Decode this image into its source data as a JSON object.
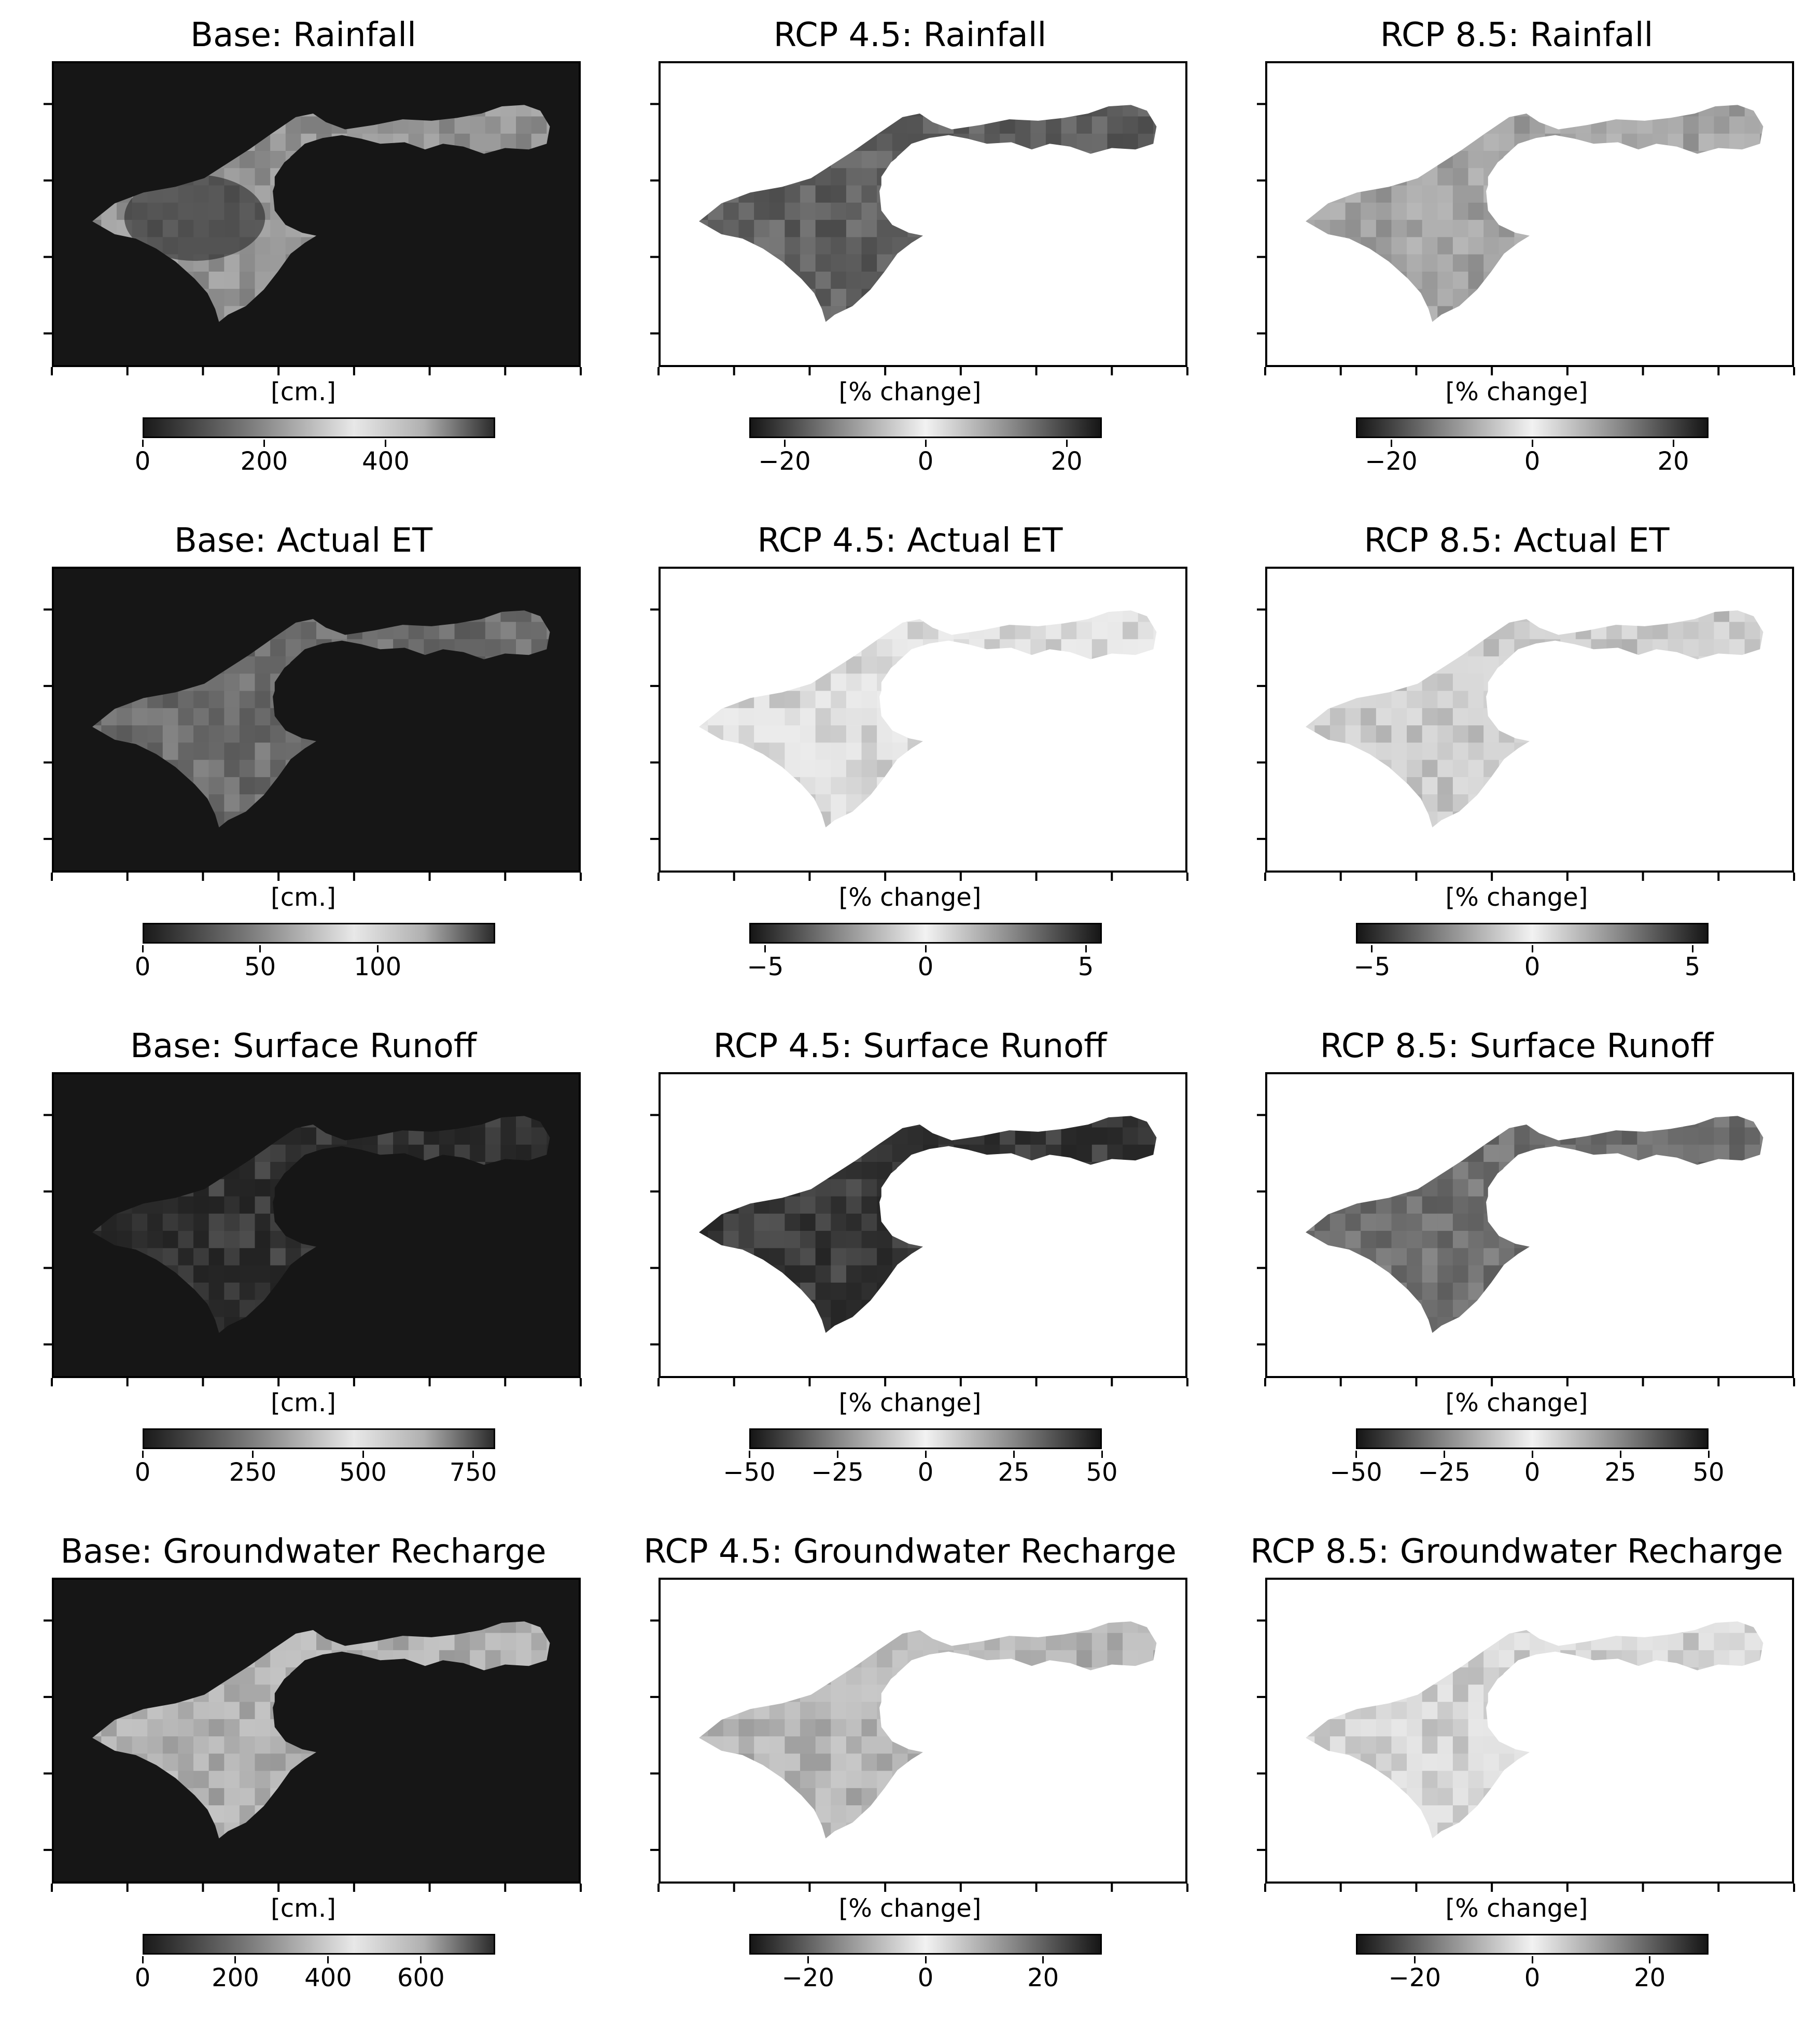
{
  "panels": [
    {
      "title": "Base: Rainfall",
      "unit": "[cm.]",
      "cmap": "seq",
      "cmin": 0,
      "cmax": 580,
      "ticks": [
        {
          "v": 0,
          "label": "0"
        },
        {
          "v": 200,
          "label": "200"
        },
        {
          "v": 400,
          "label": "400"
        }
      ]
    },
    {
      "title": "RCP 4.5: Rainfall",
      "unit": "[% change]",
      "cmap": "div",
      "cmin": -25,
      "cmax": 25,
      "ticks": [
        {
          "v": -20,
          "label": "−20"
        },
        {
          "v": 0,
          "label": "0"
        },
        {
          "v": 20,
          "label": "20"
        }
      ]
    },
    {
      "title": "RCP 8.5: Rainfall",
      "unit": "[% change]",
      "cmap": "div",
      "cmin": -25,
      "cmax": 25,
      "ticks": [
        {
          "v": -20,
          "label": "−20"
        },
        {
          "v": 0,
          "label": "0"
        },
        {
          "v": 20,
          "label": "20"
        }
      ]
    },
    {
      "title": "Base: Actual ET",
      "unit": "[cm.]",
      "cmap": "seq",
      "cmin": 0,
      "cmax": 150,
      "ticks": [
        {
          "v": 0,
          "label": "0"
        },
        {
          "v": 50,
          "label": "50"
        },
        {
          "v": 100,
          "label": "100"
        }
      ]
    },
    {
      "title": "RCP 4.5: Actual ET",
      "unit": "[% change]",
      "cmap": "div",
      "cmin": -5.5,
      "cmax": 5.5,
      "ticks": [
        {
          "v": -5,
          "label": "−5"
        },
        {
          "v": 0,
          "label": "0"
        },
        {
          "v": 5,
          "label": "5"
        }
      ]
    },
    {
      "title": "RCP 8.5: Actual ET",
      "unit": "[% change]",
      "cmap": "div",
      "cmin": -5.5,
      "cmax": 5.5,
      "ticks": [
        {
          "v": -5,
          "label": "−5"
        },
        {
          "v": 0,
          "label": "0"
        },
        {
          "v": 5,
          "label": "5"
        }
      ]
    },
    {
      "title": "Base: Surface Runoff",
      "unit": "[cm.]",
      "cmap": "seq",
      "cmin": 0,
      "cmax": 800,
      "ticks": [
        {
          "v": 0,
          "label": "0"
        },
        {
          "v": 250,
          "label": "250"
        },
        {
          "v": 500,
          "label": "500"
        },
        {
          "v": 750,
          "label": "750"
        }
      ]
    },
    {
      "title": "RCP 4.5: Surface Runoff",
      "unit": "[% change]",
      "cmap": "div",
      "cmin": -50,
      "cmax": 50,
      "ticks": [
        {
          "v": -50,
          "label": "−50"
        },
        {
          "v": -25,
          "label": "−25"
        },
        {
          "v": 0,
          "label": "0"
        },
        {
          "v": 25,
          "label": "25"
        },
        {
          "v": 50,
          "label": "50"
        }
      ]
    },
    {
      "title": "RCP 8.5: Surface Runoff",
      "unit": "[% change]",
      "cmap": "div",
      "cmin": -50,
      "cmax": 50,
      "ticks": [
        {
          "v": -50,
          "label": "−50"
        },
        {
          "v": -25,
          "label": "−25"
        },
        {
          "v": 0,
          "label": "0"
        },
        {
          "v": 25,
          "label": "25"
        },
        {
          "v": 50,
          "label": "50"
        }
      ]
    },
    {
      "title": "Base: Groundwater Recharge",
      "unit": "[cm.]",
      "cmap": "seq",
      "cmin": 0,
      "cmax": 760,
      "ticks": [
        {
          "v": 0,
          "label": "0"
        },
        {
          "v": 200,
          "label": "200"
        },
        {
          "v": 400,
          "label": "400"
        },
        {
          "v": 600,
          "label": "600"
        }
      ]
    },
    {
      "title": "RCP 4.5: Groundwater Recharge",
      "unit": "[% change]",
      "cmap": "div",
      "cmin": -30,
      "cmax": 30,
      "ticks": [
        {
          "v": -20,
          "label": "−20"
        },
        {
          "v": 0,
          "label": "0"
        },
        {
          "v": 20,
          "label": "20"
        }
      ]
    },
    {
      "title": "RCP 8.5: Groundwater Recharge",
      "unit": "[% change]",
      "cmap": "div",
      "cmin": -30,
      "cmax": 30,
      "ticks": [
        {
          "v": -20,
          "label": "−20"
        },
        {
          "v": 0,
          "label": "0"
        },
        {
          "v": 20,
          "label": "20"
        }
      ]
    }
  ]
}
